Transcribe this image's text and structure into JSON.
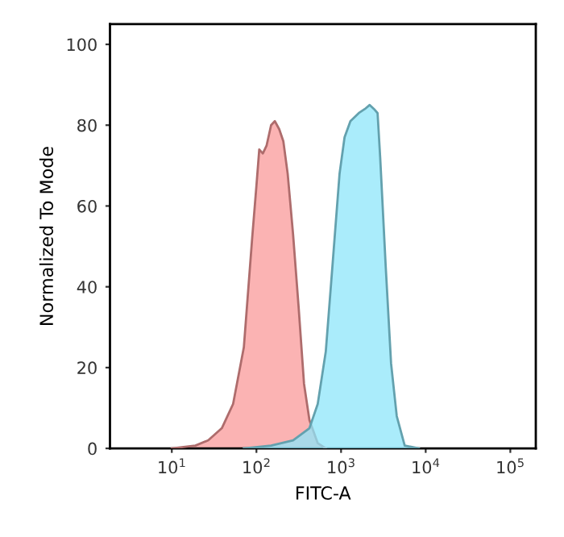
{
  "chart_data": {
    "type": "area",
    "xlabel": "FITC-A",
    "ylabel": "Normalized To Mode",
    "log": "x",
    "xlim": [
      1.86,
      200000
    ],
    "ylim": [
      0,
      105
    ],
    "xticks": [
      {
        "value": 10,
        "label": "10$^{1}$"
      },
      {
        "value": 100,
        "label": "10$^{2}$"
      },
      {
        "value": 1000,
        "label": "10$^{3}$"
      },
      {
        "value": 10000,
        "label": "10$^{4}$"
      },
      {
        "value": 100000,
        "label": "10$^{5}$"
      }
    ],
    "yticks": [
      0,
      20,
      40,
      60,
      80,
      100
    ],
    "grid": false,
    "legend": false,
    "series": [
      {
        "color": "#f99a9a",
        "x": [
          10,
          19,
          27,
          39,
          53,
          71,
          89,
          100,
          108,
          119,
          132,
          149,
          165,
          186,
          208,
          234,
          271,
          315,
          365,
          423,
          530,
          660
        ],
        "values": [
          0,
          0.7,
          2,
          5,
          11,
          25,
          52,
          65,
          74,
          73,
          75,
          80,
          81,
          79,
          76,
          68,
          53,
          35,
          16,
          7,
          1.3,
          0
        ]
      },
      {
        "color": "#8de6f9",
        "x": [
          71,
          149,
          271,
          423,
          530,
          660,
          790,
          960,
          1100,
          1290,
          1620,
          1910,
          2180,
          2450,
          2700,
          2900,
          3370,
          3900,
          4550,
          5650,
          8300
        ],
        "values": [
          0,
          0.7,
          2,
          5,
          11,
          24,
          45,
          68,
          77,
          81,
          83,
          84,
          85,
          84,
          83,
          72,
          45,
          21,
          8,
          0.7,
          0
        ]
      }
    ]
  }
}
